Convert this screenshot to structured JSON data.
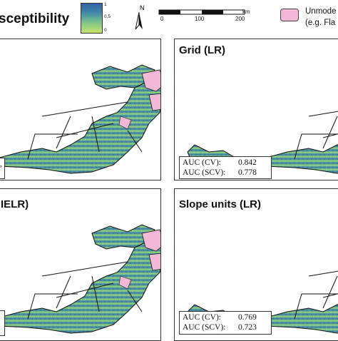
{
  "legend": {
    "title": "sceptibility",
    "colorbar_ticks": [
      "1",
      "0.5",
      "0"
    ],
    "colors": {
      "high": "#2f63a6",
      "mid": "#5fae9a",
      "low": "#c8e66c",
      "unmodelled": "#f3b7d8"
    },
    "north_label": "N",
    "scale_unit": "km",
    "scale_ticks": [
      "0",
      "100",
      "200"
    ],
    "unmodelled_line1": "Unmode",
    "unmodelled_line2": "(e.g. Fla"
  },
  "panels": [
    {
      "id": "top-left",
      "title": "",
      "auc_cv_label": "",
      "auc_cv": "",
      "auc_scv_label": "",
      "auc_scv": "",
      "fragment": ","
    },
    {
      "id": "top-right",
      "title": "Grid (LR)",
      "auc_cv_label": "AUC (CV):",
      "auc_cv": "0.842",
      "auc_scv_label": "AUC (SCV):",
      "auc_scv": "0.778"
    },
    {
      "id": "bottom-left",
      "title": "IELR)",
      "auc_cv_label": "",
      "auc_cv": "",
      "auc_scv_label": "",
      "auc_scv": ""
    },
    {
      "id": "bottom-right",
      "title": "Slope units (LR)",
      "auc_cv_label": "AUC (CV):",
      "auc_cv": "0.769",
      "auc_scv_label": "AUC (SCV):",
      "auc_scv": "0.723"
    }
  ]
}
